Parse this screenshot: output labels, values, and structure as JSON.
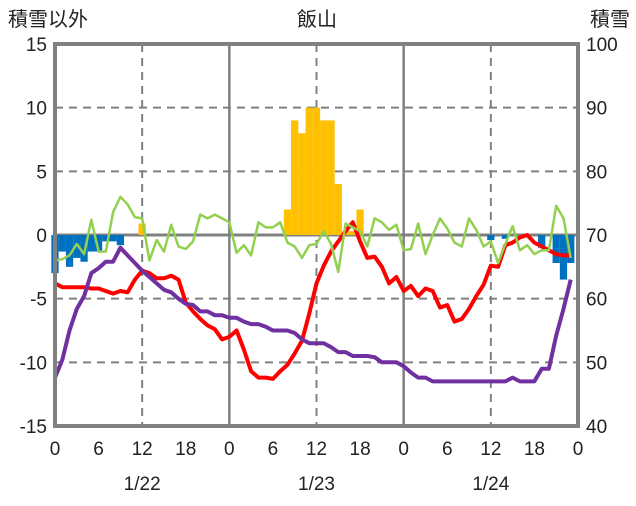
{
  "chart_data": {
    "type": "line",
    "title": "飯山",
    "ylabel_left": "積雪以外",
    "ylabel_right": "積雪",
    "ylim_left": [
      -15,
      15
    ],
    "ylim_right": [
      40,
      100
    ],
    "yticks_left": [
      "15",
      "10",
      "5",
      "0",
      "-5",
      "-10",
      "-15"
    ],
    "yticks_right": [
      "100",
      "90",
      "80",
      "70",
      "60",
      "50",
      "40"
    ],
    "xticks": [
      "0",
      "6",
      "12",
      "18",
      "0",
      "6",
      "12",
      "18",
      "0",
      "6",
      "12",
      "18",
      "0"
    ],
    "day_labels": [
      "1/22",
      "1/23",
      "1/24"
    ],
    "x_hours": 72,
    "grid": true,
    "series": [
      {
        "name": "red",
        "color": "#ff0000",
        "axis": "left",
        "values": [
          -3.8,
          -4.1,
          -4.1,
          -4.1,
          -4.1,
          -4.2,
          -4.2,
          -4.4,
          -4.6,
          -4.4,
          -4.5,
          -3.5,
          -2.8,
          -3.0,
          -3.4,
          -3.4,
          -3.2,
          -3.5,
          -5.3,
          -6.0,
          -6.6,
          -7.1,
          -7.4,
          -8.2,
          -8.0,
          -7.5,
          -9.0,
          -10.7,
          -11.2,
          -11.2,
          -11.3,
          -10.7,
          -10.2,
          -9.3,
          -8.3,
          -6.2,
          -3.8,
          -2.4,
          -1.3,
          -0.5,
          0.3,
          1.0,
          -0.5,
          -1.8,
          -1.7,
          -2.5,
          -3.8,
          -3.3,
          -4.4,
          -4.0,
          -4.8,
          -4.2,
          -4.4,
          -5.7,
          -5.5,
          -6.8,
          -6.6,
          -5.8,
          -4.8,
          -3.9,
          -2.4,
          -2.5,
          -0.8,
          -0.6,
          -0.2,
          0.0,
          -0.6,
          -0.9,
          -1.2,
          -1.5,
          -1.6,
          -1.6
        ]
      },
      {
        "name": "green",
        "color": "#92d050",
        "axis": "left",
        "values": [
          -2.0,
          -1.9,
          -1.6,
          -0.7,
          -1.5,
          1.2,
          -1.3,
          -1.3,
          1.8,
          3.0,
          2.4,
          1.4,
          1.3,
          -2.0,
          -0.4,
          -1.3,
          0.8,
          -0.9,
          -1.1,
          -0.5,
          1.6,
          1.3,
          1.6,
          1.3,
          1.0,
          -1.4,
          -0.8,
          -1.6,
          1.0,
          0.6,
          0.6,
          1.0,
          -0.6,
          -0.9,
          -1.8,
          -0.8,
          -0.7,
          0.3,
          -0.7,
          -2.9,
          0.9,
          0.6,
          0.3,
          -0.9,
          1.3,
          1.0,
          0.4,
          0.8,
          -1.2,
          -1.1,
          0.9,
          -1.5,
          0.0,
          1.3,
          0.5,
          -0.6,
          -0.9,
          1.3,
          0.4,
          -0.9,
          -0.5,
          -2.2,
          -0.7,
          0.7,
          -1.2,
          -0.8,
          -1.5,
          -1.2,
          -1.2,
          2.3,
          1.3,
          -1.8
        ]
      },
      {
        "name": "snow_depth",
        "color": "#7030a0",
        "axis": "right",
        "values": [
          47.6,
          50.4,
          55.0,
          58.4,
          60.4,
          64.0,
          64.8,
          65.8,
          65.8,
          68.0,
          66.8,
          65.6,
          64.4,
          63.4,
          62.4,
          61.4,
          61.0,
          60.0,
          59.2,
          59.0,
          58.0,
          58.0,
          57.4,
          57.4,
          57.0,
          57.0,
          56.4,
          56.0,
          56.0,
          55.6,
          55.0,
          55.0,
          55.0,
          54.6,
          53.6,
          53.0,
          53.0,
          53.0,
          52.4,
          51.6,
          51.6,
          51.0,
          51.0,
          51.0,
          50.8,
          50.0,
          50.0,
          50.0,
          49.4,
          48.4,
          47.6,
          47.6,
          47.0,
          47.0,
          47.0,
          47.0,
          47.0,
          47.0,
          47.0,
          47.0,
          47.0,
          47.0,
          47.0,
          47.6,
          47.0,
          47.0,
          47.0,
          49.0,
          49.0,
          54.2,
          58.4,
          63.0
        ]
      },
      {
        "name": "bars",
        "type": "bar",
        "axis": "left",
        "color_pos": "#ffc000",
        "color_neg": "#0070c0",
        "bars": [
          [
            0,
            -3.0
          ],
          [
            1,
            -1.3
          ],
          [
            2,
            -2.5
          ],
          [
            3,
            -1.8
          ],
          [
            4,
            -2.1
          ],
          [
            5,
            -1.3
          ],
          [
            6,
            -1.3
          ],
          [
            7,
            -0.5
          ],
          [
            8,
            -0.5
          ],
          [
            9,
            -0.8
          ],
          [
            12,
            0.9
          ],
          [
            32,
            2.0
          ],
          [
            33,
            9.0
          ],
          [
            34,
            8.0
          ],
          [
            35,
            10.0
          ],
          [
            36,
            10.0
          ],
          [
            37,
            9.0
          ],
          [
            38,
            9.0
          ],
          [
            39,
            4.0
          ],
          [
            40,
            0.3
          ],
          [
            41,
            0.3
          ],
          [
            42,
            2.0
          ],
          [
            60,
            -0.4
          ],
          [
            62,
            -0.3
          ],
          [
            67,
            -1.0
          ],
          [
            69,
            -2.2
          ],
          [
            70,
            -3.5
          ],
          [
            71,
            -2.2
          ]
        ]
      }
    ]
  }
}
